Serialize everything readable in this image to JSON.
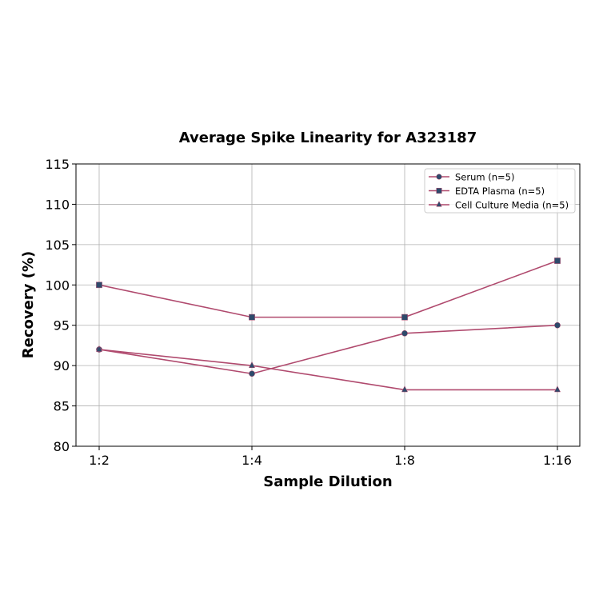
{
  "chart_data": {
    "type": "line",
    "title": "Average Spike Linearity for A323187",
    "xlabel": "Sample Dilution",
    "ylabel": "Recovery (%)",
    "categories": [
      "1:2",
      "1:4",
      "1:8",
      "1:16"
    ],
    "ylim": [
      80,
      115
    ],
    "yticks": [
      80,
      85,
      90,
      95,
      100,
      105,
      110,
      115
    ],
    "ytick_labels": [
      "80",
      "85",
      "90",
      "95",
      "100",
      "105",
      "110",
      "115"
    ],
    "grid": true,
    "legend_position": "top-right",
    "line_color": "#b04a6e",
    "marker_color": "#2e4a6b",
    "series": [
      {
        "name": "Serum (n=5)",
        "marker": "circle",
        "values": [
          92,
          89,
          94,
          95
        ]
      },
      {
        "name": "EDTA Plasma (n=5)",
        "marker": "square",
        "values": [
          100,
          96,
          96,
          103
        ]
      },
      {
        "name": "Cell Culture Media (n=5)",
        "marker": "triangle",
        "values": [
          92,
          90,
          87,
          87
        ]
      }
    ]
  }
}
